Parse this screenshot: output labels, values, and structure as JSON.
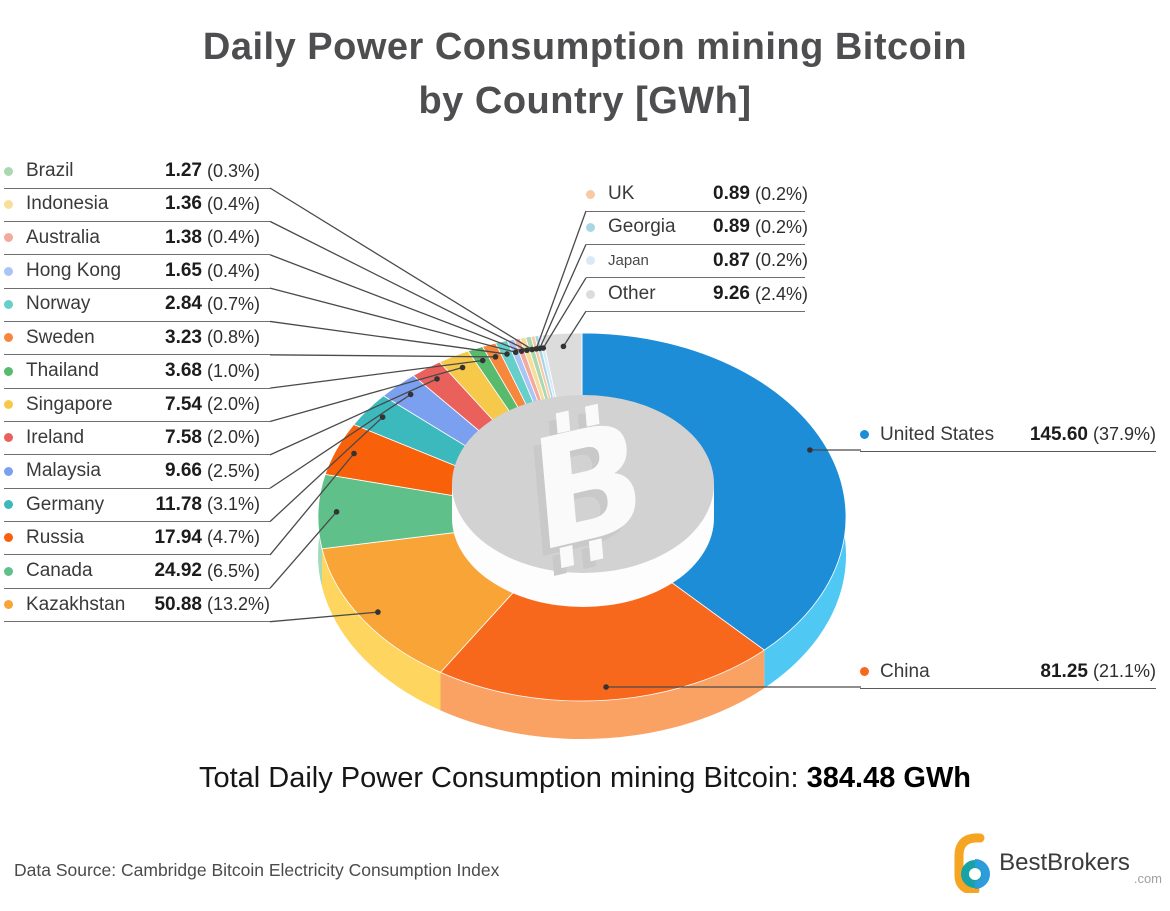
{
  "title": {
    "line1": "Daily Power Consumption mining Bitcoin",
    "line2": "by Country [GWh]"
  },
  "total": {
    "label": "Total Daily Power Consumption mining Bitcoin: ",
    "value": "384.48 GWh"
  },
  "footer": {
    "source": "Data Source: Cambridge Bitcoin Electricity Consumption Index",
    "brand": "BestBrokers",
    "brand_suffix": ".com"
  },
  "chart_data": {
    "type": "pie",
    "title": "Daily Power Consumption mining Bitcoin by Country [GWh]",
    "unit": "GWh",
    "total_label": "384.48 GWh",
    "center_icon": "bitcoin-coin",
    "series": [
      {
        "name": "United States",
        "value": 145.6,
        "display": "145.60",
        "pct": "(37.9%)",
        "color": "#1D8DD8",
        "side": "#4FC8F3"
      },
      {
        "name": "China",
        "value": 81.25,
        "display": "81.25",
        "pct": "(21.1%)",
        "color": "#F8681C",
        "side": "#FAA264"
      },
      {
        "name": "Kazakhstan",
        "value": 50.88,
        "display": "50.88",
        "pct": "(13.2%)",
        "color": "#F8A436",
        "side": "#FDD55F"
      },
      {
        "name": "Canada",
        "value": 24.92,
        "display": "24.92",
        "pct": "(6.5%)",
        "color": "#5FC08A"
      },
      {
        "name": "Russia",
        "value": 17.94,
        "display": "17.94",
        "pct": "(4.7%)",
        "color": "#F8600A"
      },
      {
        "name": "Germany",
        "value": 11.78,
        "display": "11.78",
        "pct": "(3.1%)",
        "color": "#3CB9BD"
      },
      {
        "name": "Malaysia",
        "value": 9.66,
        "display": "9.66",
        "pct": "(2.5%)",
        "color": "#7CA0F0"
      },
      {
        "name": "Ireland",
        "value": 7.58,
        "display": "7.58",
        "pct": "(2.0%)",
        "color": "#EA615C"
      },
      {
        "name": "Singapore",
        "value": 7.54,
        "display": "7.54",
        "pct": "(2.0%)",
        "color": "#F6C94B"
      },
      {
        "name": "Thailand",
        "value": 3.68,
        "display": "3.68",
        "pct": "(1.0%)",
        "color": "#57BA6C"
      },
      {
        "name": "Sweden",
        "value": 3.23,
        "display": "3.23",
        "pct": "(0.8%)",
        "color": "#F6873C"
      },
      {
        "name": "Norway",
        "value": 2.84,
        "display": "2.84",
        "pct": "(0.7%)",
        "color": "#66CFC9"
      },
      {
        "name": "Hong Kong",
        "value": 1.65,
        "display": "1.65",
        "pct": "(0.4%)",
        "color": "#A9C4F5"
      },
      {
        "name": "Australia",
        "value": 1.38,
        "display": "1.38",
        "pct": "(0.4%)",
        "color": "#F3A99B"
      },
      {
        "name": "Indonesia",
        "value": 1.36,
        "display": "1.36",
        "pct": "(0.4%)",
        "color": "#F7DE9B"
      },
      {
        "name": "Brazil",
        "value": 1.27,
        "display": "1.27",
        "pct": "(0.3%)",
        "color": "#A9D8B1"
      },
      {
        "name": "UK",
        "value": 0.89,
        "display": "0.89",
        "pct": "(0.2%)",
        "color": "#F8C9A2"
      },
      {
        "name": "Georgia",
        "value": 0.89,
        "display": "0.89",
        "pct": "(0.2%)",
        "color": "#A9D6E7"
      },
      {
        "name": "Japan",
        "value": 0.87,
        "display": "0.87",
        "pct": "(0.2%)",
        "color": "#D9EAF6",
        "small_label": true
      },
      {
        "name": "Other",
        "value": 9.26,
        "display": "9.26",
        "pct": "(2.4%)",
        "color": "#DCDCDC"
      }
    ],
    "legend_left": [
      "Brazil",
      "Indonesia",
      "Australia",
      "Hong Kong",
      "Norway",
      "Sweden",
      "Thailand",
      "Singapore",
      "Ireland",
      "Malaysia",
      "Germany",
      "Russia",
      "Canada",
      "Kazakhstan"
    ],
    "legend_right": [
      "UK",
      "Georgia",
      "Japan",
      "Other"
    ],
    "legend_callout": [
      "United States",
      "China"
    ]
  }
}
